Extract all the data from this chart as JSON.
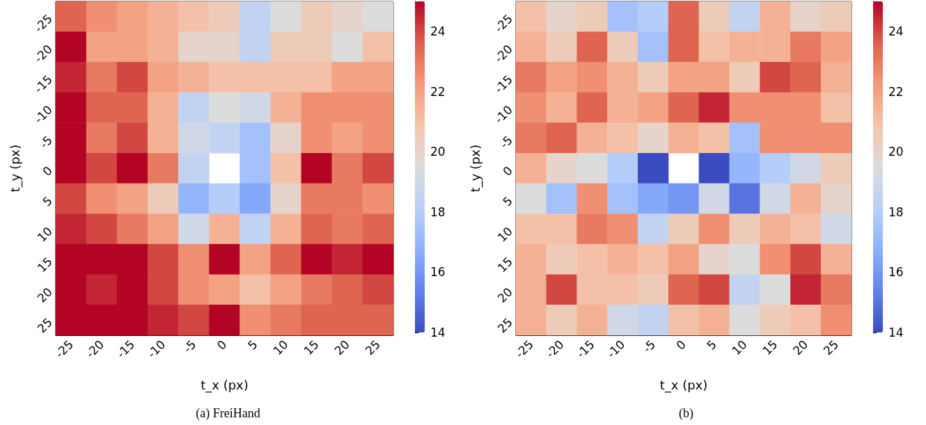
{
  "chart_data": [
    {
      "type": "heatmap",
      "title": "(a) FreiHand",
      "xlabel": "t_x (px)",
      "ylabel": "t_y (px)",
      "categories": [
        "-25",
        "-20",
        "-15",
        "-10",
        "-5",
        "0",
        "5",
        "10",
        "15",
        "20",
        "25"
      ],
      "y_categories": [
        "-25",
        "-20",
        "-15",
        "-10",
        "-5",
        "0",
        "5",
        "10",
        "15",
        "20",
        "25"
      ],
      "cells": [
        [
          23.5,
          22.5,
          22,
          21.5,
          21,
          20.5,
          18.5,
          19.5,
          20.5,
          20,
          19.5
        ],
        [
          25,
          22,
          22,
          21.5,
          20,
          20,
          18.5,
          20.5,
          20.5,
          19.5,
          21
        ],
        [
          24.5,
          23,
          24,
          22,
          21.5,
          21,
          21,
          21,
          21,
          22,
          22
        ],
        [
          25,
          23.5,
          23.5,
          21.5,
          18.5,
          19.5,
          19,
          21.5,
          22.5,
          22.5,
          22.5
        ],
        [
          25,
          23,
          24,
          21.5,
          19,
          18.5,
          17.5,
          20,
          22.5,
          22,
          22.5
        ],
        [
          25,
          24,
          25,
          23,
          18.5,
          null,
          17.5,
          21,
          25,
          23,
          24
        ],
        [
          24,
          22.5,
          22,
          20.5,
          17,
          18,
          16.5,
          20,
          23,
          23,
          22.5
        ],
        [
          24.5,
          24,
          23,
          22,
          19,
          21.5,
          18.5,
          21.5,
          23.5,
          23,
          23.5
        ],
        [
          25,
          25,
          25,
          24,
          22.5,
          25,
          22,
          23.5,
          25,
          24.5,
          25
        ],
        [
          25,
          24.5,
          25,
          24,
          22.5,
          22,
          21,
          22,
          23,
          23.5,
          24
        ],
        [
          25,
          25,
          25,
          24.5,
          24,
          25,
          22.5,
          23,
          23.5,
          23.5,
          23.5
        ]
      ],
      "clim": [
        14,
        25
      ],
      "cticks": [
        14,
        16,
        18,
        20,
        22,
        24
      ]
    },
    {
      "type": "heatmap",
      "title": "(b)",
      "xlabel": "t_x (px)",
      "ylabel": "t_y (px)",
      "categories": [
        "-25",
        "-20",
        "-15",
        "-10",
        "-5",
        "0",
        "5",
        "10",
        "15",
        "20",
        "25"
      ],
      "y_categories": [
        "-25",
        "-20",
        "-15",
        "-10",
        "-5",
        "0",
        "5",
        "10",
        "15",
        "20",
        "25"
      ],
      "cells": [
        [
          21,
          20,
          20.5,
          17.5,
          18,
          23.5,
          20.5,
          18.5,
          21.5,
          20,
          20.5
        ],
        [
          21.5,
          20.5,
          23.5,
          20.5,
          17.5,
          23.5,
          21,
          21.5,
          21.5,
          23,
          22
        ],
        [
          23,
          22,
          22.5,
          21.5,
          20.5,
          22,
          22,
          20.5,
          24,
          23.5,
          21.5
        ],
        [
          22.5,
          21.5,
          23.5,
          21.5,
          22,
          23.5,
          24.5,
          22.5,
          22.5,
          22.5,
          21
        ],
        [
          23,
          23.5,
          21.5,
          21,
          20,
          21.5,
          21,
          17.5,
          22.5,
          22.5,
          22.5
        ],
        [
          21.5,
          20,
          19.5,
          18,
          14,
          null,
          14,
          17,
          18,
          19,
          20.5
        ],
        [
          19.5,
          17.5,
          22.5,
          17.5,
          16.5,
          16,
          19,
          15,
          19,
          21.5,
          20
        ],
        [
          21,
          21,
          23,
          22.5,
          18.5,
          20.5,
          22.5,
          20.5,
          21.5,
          21,
          19
        ],
        [
          21.5,
          20.5,
          21,
          21.5,
          21,
          22,
          20,
          19.5,
          22.5,
          24,
          21.5
        ],
        [
          21.5,
          24,
          21,
          21,
          20.5,
          23.5,
          24,
          18.5,
          19.5,
          24.5,
          23
        ],
        [
          21.5,
          20.5,
          21.5,
          19,
          18.5,
          21,
          21.5,
          19.5,
          20.5,
          21,
          22.5
        ]
      ],
      "clim": [
        14,
        25
      ],
      "cticks": [
        14,
        16,
        18,
        20,
        22,
        24
      ]
    }
  ]
}
